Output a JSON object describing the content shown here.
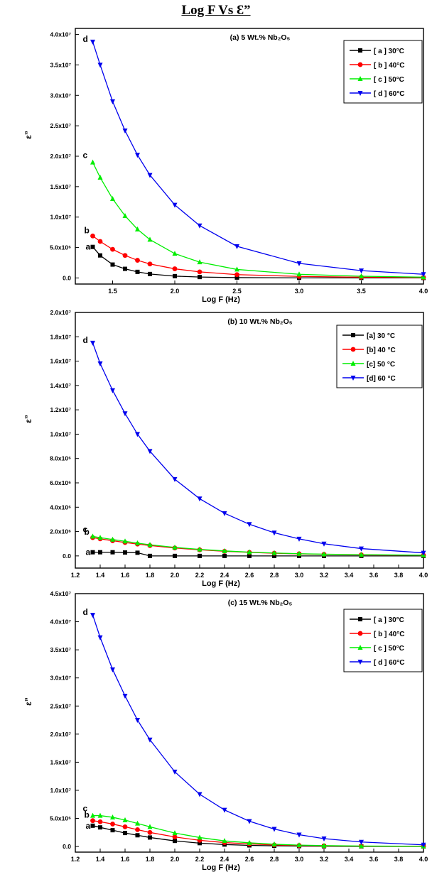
{
  "page_title": "Log F Vs Ɛ”",
  "chart_data": [
    {
      "type": "line",
      "title": "(a) 5 Wt.% Nb₂O₅",
      "xlabel": "Log F (Hz)",
      "ylabel": "ε”",
      "xlim": [
        1.2,
        4.0
      ],
      "ylim": [
        -1000000,
        41000000
      ],
      "x_ticks": [
        1.5,
        2.0,
        2.5,
        3.0,
        3.5,
        4.0
      ],
      "x_tick_labels": [
        "1.5",
        "2.0",
        "2.5",
        "3.0",
        "3.5",
        "4.0"
      ],
      "y_ticks": [
        0,
        5000000,
        10000000,
        15000000,
        20000000,
        25000000,
        30000000,
        35000000,
        40000000
      ],
      "y_tick_labels": [
        "0.0",
        "5.0x10⁶",
        "1.0x10⁷",
        "1.5x10⁷",
        "2.0x10⁷",
        "2.5x10⁷",
        "3.0x10⁷",
        "3.5x10⁷",
        "4.0x10⁷"
      ],
      "grid": false,
      "legend_position": "top-right",
      "x": [
        1.34,
        1.4,
        1.5,
        1.6,
        1.7,
        1.8,
        2.0,
        2.2,
        2.5,
        3.0,
        3.5,
        4.0
      ],
      "series": [
        {
          "name": "[ a ] 30°C",
          "marker": "square",
          "color": "#000000",
          "curve_label": "a",
          "values": [
            5100000,
            3700000,
            2200000,
            1500000,
            1000000,
            650000,
            300000,
            150000,
            60000,
            20000,
            8000,
            3000
          ]
        },
        {
          "name": "[ b ] 40°C",
          "marker": "circle",
          "color": "#ff0000",
          "curve_label": "b",
          "values": [
            6900000,
            6000000,
            4700000,
            3700000,
            2900000,
            2300000,
            1500000,
            1000000,
            550000,
            250000,
            120000,
            60000
          ]
        },
        {
          "name": "[ c ] 50°C",
          "marker": "triangle-up",
          "color": "#00ee00",
          "curve_label": "c",
          "values": [
            19000000,
            16500000,
            13000000,
            10200000,
            8000000,
            6300000,
            4000000,
            2600000,
            1400000,
            600000,
            280000,
            130000
          ]
        },
        {
          "name": "[ d ] 60°C",
          "marker": "triangle-down",
          "color": "#0000ee",
          "curve_label": "d",
          "values": [
            38800000,
            35000000,
            29000000,
            24200000,
            20200000,
            16900000,
            12000000,
            8600000,
            5200000,
            2400000,
            1200000,
            600000
          ]
        }
      ]
    },
    {
      "type": "line",
      "title": "(b) 10 Wt.% Nb₂O₅",
      "xlabel": "Log F (Hz)",
      "ylabel": "ε”",
      "xlim": [
        1.2,
        4.0
      ],
      "ylim": [
        -1000000,
        20000000
      ],
      "x_ticks": [
        1.2,
        1.4,
        1.6,
        1.8,
        2.0,
        2.2,
        2.4,
        2.6,
        2.8,
        3.0,
        3.2,
        3.4,
        3.6,
        3.8,
        4.0
      ],
      "x_tick_labels": [
        "1.2",
        "1.4",
        "1.6",
        "1.8",
        "2.0",
        "2.2",
        "2.4",
        "2.6",
        "2.8",
        "3.0",
        "3.2",
        "3.4",
        "3.6",
        "3.8",
        "4.0"
      ],
      "y_ticks": [
        0,
        2000000,
        4000000,
        6000000,
        8000000,
        10000000,
        12000000,
        14000000,
        16000000,
        18000000,
        20000000
      ],
      "y_tick_labels": [
        "0.0",
        "2.0x10⁶",
        "4.0x10⁶",
        "6.0x10⁶",
        "8.0x10⁶",
        "1.0x10⁷",
        "1.2x10⁷",
        "1.4x10⁷",
        "1.6x10⁷",
        "1.8x10⁷",
        "2.0x10⁷"
      ],
      "grid": false,
      "legend_position": "top-right",
      "x": [
        1.34,
        1.4,
        1.5,
        1.6,
        1.7,
        1.8,
        2.0,
        2.2,
        2.4,
        2.6,
        2.8,
        3.0,
        3.2,
        3.5,
        4.0
      ],
      "series": [
        {
          "name": "[a] 30 °C",
          "marker": "square",
          "color": "#000000",
          "curve_label": "a",
          "values": [
            300000,
            300000,
            300000,
            280000,
            260000,
            0,
            0,
            0,
            0,
            0,
            0,
            0,
            0,
            0,
            0
          ]
        },
        {
          "name": "[b] 40 °C",
          "marker": "circle",
          "color": "#ff0000",
          "curve_label": "b",
          "values": [
            1500000,
            1400000,
            1250000,
            1100000,
            970000,
            850000,
            650000,
            500000,
            380000,
            290000,
            220000,
            170000,
            130000,
            90000,
            50000
          ]
        },
        {
          "name": "[c] 50 °C",
          "marker": "triangle-up",
          "color": "#00ee00",
          "curve_label": "c",
          "values": [
            1600000,
            1500000,
            1350000,
            1200000,
            1050000,
            920000,
            700000,
            540000,
            410000,
            310000,
            240000,
            180000,
            140000,
            100000,
            60000
          ]
        },
        {
          "name": "[d] 60 °C",
          "marker": "triangle-down",
          "color": "#0000ee",
          "curve_label": "d",
          "values": [
            17500000,
            15800000,
            13600000,
            11700000,
            10000000,
            8600000,
            6300000,
            4700000,
            3500000,
            2600000,
            1900000,
            1400000,
            1000000,
            600000,
            250000
          ]
        }
      ]
    },
    {
      "type": "line",
      "title": "(c) 15 Wt.% Nb₂O₅",
      "xlabel": "Log F (Hz)",
      "ylabel": "ε”",
      "xlim": [
        1.2,
        4.0
      ],
      "ylim": [
        -1000000,
        45000000
      ],
      "x_ticks": [
        1.2,
        1.4,
        1.6,
        1.8,
        2.0,
        2.2,
        2.4,
        2.6,
        2.8,
        3.0,
        3.2,
        3.4,
        3.6,
        3.8,
        4.0
      ],
      "x_tick_labels": [
        "1.2",
        "1.4",
        "1.6",
        "1.8",
        "2.0",
        "2.2",
        "2.4",
        "2.6",
        "2.8",
        "3.0",
        "3.2",
        "3.4",
        "3.6",
        "3.8",
        "4.0"
      ],
      "y_ticks": [
        0,
        5000000,
        10000000,
        15000000,
        20000000,
        25000000,
        30000000,
        35000000,
        40000000,
        45000000
      ],
      "y_tick_labels": [
        "0.0",
        "5.0x10⁶",
        "1.0x10⁷",
        "1.5x10⁷",
        "2.0x10⁷",
        "2.5x10⁷",
        "3.0x10⁷",
        "3.5x10⁷",
        "4.0x10⁷",
        "4.5x10⁷"
      ],
      "grid": false,
      "legend_position": "top-right",
      "x": [
        1.34,
        1.4,
        1.5,
        1.6,
        1.7,
        1.8,
        2.0,
        2.2,
        2.4,
        2.6,
        2.8,
        3.0,
        3.2,
        3.5,
        4.0
      ],
      "series": [
        {
          "name": "[ a ] 30°C",
          "marker": "square",
          "color": "#000000",
          "curve_label": "a",
          "values": [
            3700000,
            3400000,
            2900000,
            2400000,
            2000000,
            1600000,
            1000000,
            600000,
            350000,
            200000,
            120000,
            70000,
            40000,
            20000,
            10000
          ]
        },
        {
          "name": "[ b ] 40°C",
          "marker": "circle",
          "color": "#ff0000",
          "curve_label": "b",
          "values": [
            4600000,
            4400000,
            4000000,
            3500000,
            3000000,
            2500000,
            1700000,
            1100000,
            700000,
            450000,
            280000,
            180000,
            110000,
            60000,
            30000
          ]
        },
        {
          "name": "[ c ] 50°C",
          "marker": "triangle-up",
          "color": "#00ee00",
          "curve_label": "c",
          "values": [
            5500000,
            5500000,
            5200000,
            4700000,
            4100000,
            3500000,
            2400000,
            1600000,
            1000000,
            650000,
            400000,
            250000,
            160000,
            80000,
            40000
          ]
        },
        {
          "name": "[ d ] 60°C",
          "marker": "triangle-down",
          "color": "#0000ee",
          "curve_label": "d",
          "values": [
            41200000,
            37200000,
            31500000,
            26800000,
            22500000,
            19000000,
            13300000,
            9300000,
            6500000,
            4500000,
            3100000,
            2100000,
            1400000,
            800000,
            300000
          ]
        }
      ]
    }
  ]
}
